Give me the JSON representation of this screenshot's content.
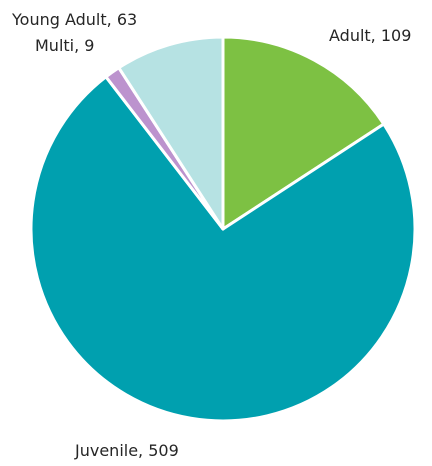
{
  "chart_data": {
    "type": "pie",
    "slices": [
      {
        "label": "Adult",
        "value": 109,
        "color": "#7DC143",
        "text": "Adult, 109"
      },
      {
        "label": "Juvenile",
        "value": 509,
        "color": "#00A0AF",
        "text": "Juvenile, 509"
      },
      {
        "label": "Multi",
        "value": 9,
        "color": "#BC93CE",
        "text": "Multi, 9"
      },
      {
        "label": "Young Adult",
        "value": 63,
        "color": "#B6E2E3",
        "text": "Young Adult, 63"
      }
    ],
    "start_angle_deg": 0,
    "direction": "clockwise",
    "legend": "none"
  }
}
